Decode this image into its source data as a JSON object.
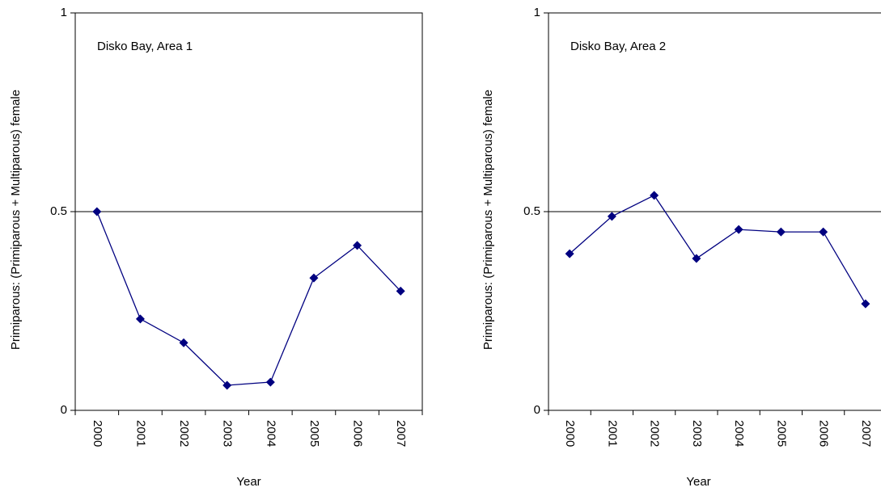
{
  "chart_data": [
    {
      "type": "line",
      "annotation": "Disko Bay, Area 1",
      "y_label": "Primiparous: (Primiparous + Multiparous) female",
      "x_label": "Year",
      "categories": [
        "2000",
        "2001",
        "2002",
        "2003",
        "2004",
        "2005",
        "2006",
        "2007"
      ],
      "series": [
        {
          "color": "#000080",
          "values": [
            0.5,
            0.23,
            0.17,
            0.063,
            0.071,
            0.333,
            0.415,
            0.3
          ]
        }
      ],
      "ylim": [
        0,
        1
      ],
      "yticks": [
        0,
        0.5,
        1
      ],
      "grid": true
    },
    {
      "type": "line",
      "annotation": "Disko Bay, Area 2",
      "y_label": "Primiparous: (Primiparous + Multiparous) female",
      "x_label": "Year",
      "categories": [
        "2000",
        "2001",
        "2002",
        "2003",
        "2004",
        "2005",
        "2006",
        "2007"
      ],
      "series": [
        {
          "color": "#000080",
          "values": [
            0.394,
            0.488,
            0.541,
            0.382,
            0.455,
            0.449,
            0.449,
            0.268
          ]
        }
      ],
      "ylim": [
        0,
        1
      ],
      "yticks": [
        0,
        0.5,
        1
      ],
      "grid": true
    }
  ]
}
